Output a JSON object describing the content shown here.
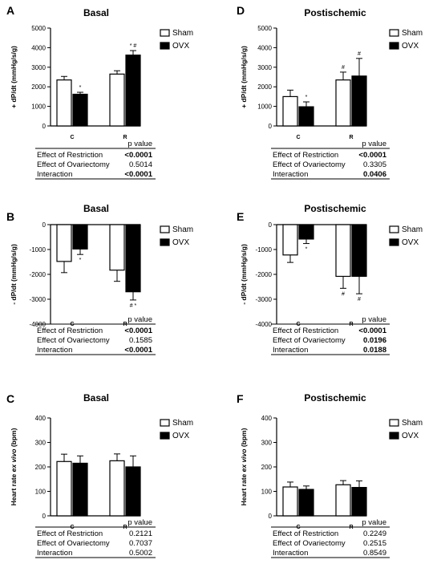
{
  "panels": [
    {
      "label": "A",
      "title": "Basal",
      "ylabel": "+ dP/dt (mmHg/s/g)",
      "ylabel_italic": "",
      "ylabel_after": "",
      "ylim": [
        0,
        5000
      ],
      "yticks": [
        0,
        1000,
        2000,
        3000,
        4000,
        5000
      ],
      "categories": [
        "C",
        "R"
      ],
      "series": [
        {
          "name": "Sham",
          "values": [
            2350,
            2650
          ],
          "errors": [
            180,
            170
          ]
        },
        {
          "name": "OVX",
          "values": [
            1620,
            3620
          ],
          "errors": [
            100,
            230
          ]
        }
      ],
      "marks": [
        {
          "cat": 0,
          "series": 1,
          "text": "*",
          "pos": "above"
        },
        {
          "cat": 1,
          "series": 1,
          "text": "* #",
          "pos": "above"
        }
      ],
      "table": {
        "header": "p value",
        "rows": [
          {
            "label": "Effect of Restriction",
            "value": "<0.0001",
            "bold": true
          },
          {
            "label": "Effect of Ovariectomy",
            "value": "0.5014",
            "bold": false
          },
          {
            "label": "Interaction",
            "value": "<0.0001",
            "bold": true
          }
        ]
      }
    },
    {
      "label": "D",
      "title": "Postischemic",
      "ylabel": "+ dP/dt (mmHg/s/g)",
      "ylabel_italic": "",
      "ylabel_after": "",
      "ylim": [
        0,
        5000
      ],
      "yticks": [
        0,
        1000,
        2000,
        3000,
        4000,
        5000
      ],
      "categories": [
        "C",
        "R"
      ],
      "series": [
        {
          "name": "Sham",
          "values": [
            1500,
            2350
          ],
          "errors": [
            330,
            400
          ]
        },
        {
          "name": "OVX",
          "values": [
            980,
            2550
          ],
          "errors": [
            250,
            900
          ]
        }
      ],
      "marks": [
        {
          "cat": 0,
          "series": 1,
          "text": "*",
          "pos": "above"
        },
        {
          "cat": 1,
          "series": 0,
          "text": "#",
          "pos": "above"
        },
        {
          "cat": 1,
          "series": 1,
          "text": "#",
          "pos": "above"
        }
      ],
      "table": {
        "header": "p value",
        "rows": [
          {
            "label": "Effect of Restriction",
            "value": "<0.0001",
            "bold": true
          },
          {
            "label": "Effect of Ovariectomy",
            "value": "0.3305",
            "bold": false
          },
          {
            "label": "Interaction",
            "value": "0.0406",
            "bold": true
          }
        ]
      }
    },
    {
      "label": "B",
      "title": "Basal",
      "ylabel": "- dP/dt (mmHg/s/g)",
      "ylabel_italic": "",
      "ylabel_after": "",
      "ylim": [
        -4000,
        0
      ],
      "yticks": [
        0,
        -1000,
        -2000,
        -3000,
        -4000
      ],
      "categories": [
        "C",
        "R"
      ],
      "series": [
        {
          "name": "Sham",
          "values": [
            -1480,
            -1830
          ],
          "errors": [
            450,
            450
          ]
        },
        {
          "name": "OVX",
          "values": [
            -980,
            -2700
          ],
          "errors": [
            220,
            330
          ]
        }
      ],
      "marks": [
        {
          "cat": 0,
          "series": 1,
          "text": "*",
          "pos": "below"
        },
        {
          "cat": 1,
          "series": 1,
          "text": "# *",
          "pos": "below"
        }
      ],
      "table": {
        "header": "p value",
        "rows": [
          {
            "label": "Effect of Restriction",
            "value": "<0.0001",
            "bold": true
          },
          {
            "label": "Effect of Ovariectomy",
            "value": "0.1585",
            "bold": false
          },
          {
            "label": "Interaction",
            "value": "<0.0001",
            "bold": true
          }
        ]
      }
    },
    {
      "label": "E",
      "title": "Postischemic",
      "ylabel": "- dP/dt (mmHg/s/g)",
      "ylabel_italic": "",
      "ylabel_after": "",
      "ylim": [
        -4000,
        0
      ],
      "yticks": [
        0,
        -1000,
        -2000,
        -3000,
        -4000
      ],
      "categories": [
        "C",
        "R"
      ],
      "series": [
        {
          "name": "Sham",
          "values": [
            -1220,
            -2080
          ],
          "errors": [
            300,
            480
          ]
        },
        {
          "name": "OVX",
          "values": [
            -580,
            -2080
          ],
          "errors": [
            180,
            700
          ]
        }
      ],
      "marks": [
        {
          "cat": 0,
          "series": 1,
          "text": "*",
          "pos": "below"
        },
        {
          "cat": 1,
          "series": 0,
          "text": "#",
          "pos": "below"
        },
        {
          "cat": 1,
          "series": 1,
          "text": "#",
          "pos": "below"
        }
      ],
      "table": {
        "header": "p value",
        "rows": [
          {
            "label": "Effect of Restriction",
            "value": "<0.0001",
            "bold": true
          },
          {
            "label": "Effect of Ovariectomy",
            "value": "0.0196",
            "bold": true
          },
          {
            "label": "Interaction",
            "value": "0.0188",
            "bold": true
          }
        ]
      }
    },
    {
      "label": "C",
      "title": "Basal",
      "ylabel": "Heart rate ",
      "ylabel_italic": "ex vivo",
      "ylabel_after": " (bpm)",
      "ylim": [
        0,
        400
      ],
      "yticks": [
        0,
        100,
        200,
        300,
        400
      ],
      "categories": [
        "C",
        "R"
      ],
      "series": [
        {
          "name": "Sham",
          "values": [
            222,
            225
          ],
          "errors": [
            30,
            28
          ]
        },
        {
          "name": "OVX",
          "values": [
            215,
            200
          ],
          "errors": [
            30,
            45
          ]
        }
      ],
      "marks": [],
      "table": {
        "header": "p value",
        "rows": [
          {
            "label": "Effect of Restriction",
            "value": "0.2121",
            "bold": false
          },
          {
            "label": "Effect of Ovariectomy",
            "value": "0.7037",
            "bold": false
          },
          {
            "label": "Interaction",
            "value": "0.5002",
            "bold": false
          }
        ]
      }
    },
    {
      "label": "F",
      "title": "Postischemic",
      "ylabel": "Heart rate ",
      "ylabel_italic": "ex vivo",
      "ylabel_after": " (bpm)",
      "ylim": [
        0,
        400
      ],
      "yticks": [
        0,
        100,
        200,
        300,
        400
      ],
      "categories": [
        "C",
        "R"
      ],
      "series": [
        {
          "name": "Sham",
          "values": [
            118,
            127
          ],
          "errors": [
            20,
            17
          ]
        },
        {
          "name": "OVX",
          "values": [
            108,
            116
          ],
          "errors": [
            14,
            27
          ]
        }
      ],
      "marks": [],
      "table": {
        "header": "p value",
        "rows": [
          {
            "label": "Effect of Restriction",
            "value": "0.2249",
            "bold": false
          },
          {
            "label": "Effect of Ovariectomy",
            "value": "0.2515",
            "bold": false
          },
          {
            "label": "Interaction",
            "value": "0.8549",
            "bold": false
          }
        ]
      }
    }
  ],
  "legend": [
    {
      "name": "Sham",
      "fill": "#ffffff"
    },
    {
      "name": "OVX",
      "fill": "#000000"
    }
  ],
  "colors": {
    "sham": "#ffffff",
    "ovx": "#000000",
    "axis": "#000000"
  },
  "chart_data": [
    {
      "type": "bar",
      "panel": "A",
      "title": "Basal",
      "ylabel": "+ dP/dt (mmHg/s/g)",
      "categories": [
        "C",
        "R"
      ],
      "ylim": [
        0,
        5000
      ],
      "series": [
        {
          "name": "Sham",
          "values": [
            2350,
            2650
          ]
        },
        {
          "name": "OVX",
          "values": [
            1620,
            3620
          ]
        }
      ]
    },
    {
      "type": "bar",
      "panel": "D",
      "title": "Postischemic",
      "ylabel": "+ dP/dt (mmHg/s/g)",
      "categories": [
        "C",
        "R"
      ],
      "ylim": [
        0,
        5000
      ],
      "series": [
        {
          "name": "Sham",
          "values": [
            1500,
            2350
          ]
        },
        {
          "name": "OVX",
          "values": [
            980,
            2550
          ]
        }
      ]
    },
    {
      "type": "bar",
      "panel": "B",
      "title": "Basal",
      "ylabel": "- dP/dt (mmHg/s/g)",
      "categories": [
        "C",
        "R"
      ],
      "ylim": [
        -4000,
        0
      ],
      "series": [
        {
          "name": "Sham",
          "values": [
            -1480,
            -1830
          ]
        },
        {
          "name": "OVX",
          "values": [
            -980,
            -2700
          ]
        }
      ]
    },
    {
      "type": "bar",
      "panel": "E",
      "title": "Postischemic",
      "ylabel": "- dP/dt (mmHg/s/g)",
      "categories": [
        "C",
        "R"
      ],
      "ylim": [
        -4000,
        0
      ],
      "series": [
        {
          "name": "Sham",
          "values": [
            -1220,
            -2080
          ]
        },
        {
          "name": "OVX",
          "values": [
            -580,
            -2080
          ]
        }
      ]
    },
    {
      "type": "bar",
      "panel": "C",
      "title": "Basal",
      "ylabel": "Heart rate ex vivo (bpm)",
      "categories": [
        "C",
        "R"
      ],
      "ylim": [
        0,
        400
      ],
      "series": [
        {
          "name": "Sham",
          "values": [
            222,
            225
          ]
        },
        {
          "name": "OVX",
          "values": [
            215,
            200
          ]
        }
      ]
    },
    {
      "type": "bar",
      "panel": "F",
      "title": "Postischemic",
      "ylabel": "Heart rate ex vivo (bpm)",
      "categories": [
        "C",
        "R"
      ],
      "ylim": [
        0,
        400
      ],
      "series": [
        {
          "name": "Sham",
          "values": [
            118,
            127
          ]
        },
        {
          "name": "OVX",
          "values": [
            108,
            116
          ]
        }
      ]
    }
  ]
}
